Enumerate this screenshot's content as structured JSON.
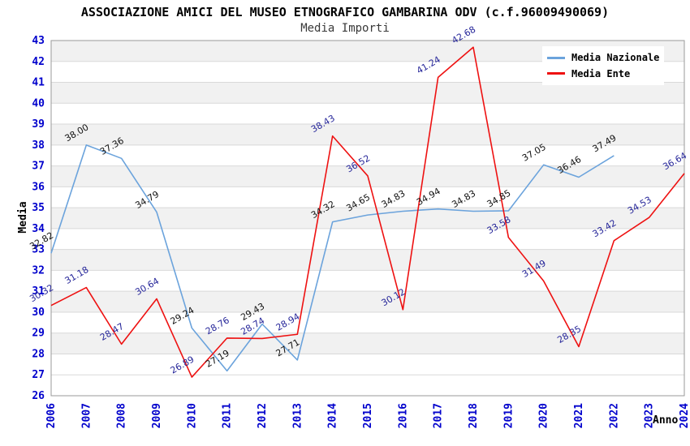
{
  "header": {
    "title": "ASSOCIAZIONE AMICI DEL MUSEO ETNOGRAFICO GAMBARINA ODV (c.f.96009490069)",
    "subtitle": "Media Importi"
  },
  "axes": {
    "y_label": "Media",
    "x_label": "Anno",
    "y_tick_color": "#0000cc",
    "x_tick_color": "#0000cc"
  },
  "legend": {
    "position": "top-right",
    "items": [
      {
        "label": "Media Nazionale",
        "color": "#6ba3dc"
      },
      {
        "label": "Media Ente",
        "color": "#ee1111"
      }
    ]
  },
  "colors": {
    "band_gray": "#f1f1f1",
    "gridline": "#d9d9d9",
    "frame": "#9a9a9a",
    "background": "#ffffff"
  },
  "chart_data": {
    "type": "line",
    "title": "ASSOCIAZIONE AMICI DEL MUSEO ETNOGRAFICO GAMBARINA ODV (c.f.96009490069)",
    "subtitle": "Media Importi",
    "xlabel": "Anno",
    "ylabel": "Media",
    "ylim": [
      26,
      43
    ],
    "y_ticks": [
      26,
      27,
      28,
      29,
      30,
      31,
      32,
      33,
      34,
      35,
      36,
      37,
      38,
      39,
      40,
      41,
      42,
      43
    ],
    "x": [
      2006,
      2007,
      2008,
      2009,
      2010,
      2011,
      2012,
      2013,
      2014,
      2015,
      2016,
      2017,
      2018,
      2019,
      2020,
      2021,
      2022,
      2023,
      2024
    ],
    "grid": "horizontal gridlines with alternating gray/white bands",
    "legend_position": "top-right inside plot",
    "series": [
      {
        "name": "Media Nazionale",
        "color": "#6ba3dc",
        "label_color": "#111111",
        "values": [
          32.82,
          38.0,
          37.36,
          34.79,
          29.24,
          27.19,
          29.43,
          27.71,
          34.32,
          34.65,
          34.83,
          34.94,
          34.83,
          34.85,
          37.05,
          36.46,
          37.49,
          null,
          null
        ]
      },
      {
        "name": "Media Ente",
        "color": "#ee1111",
        "label_color": "#252599",
        "values": [
          30.32,
          31.18,
          28.47,
          30.64,
          26.89,
          28.76,
          28.74,
          28.94,
          38.43,
          36.52,
          30.12,
          41.24,
          42.68,
          33.58,
          31.49,
          28.35,
          33.42,
          34.53,
          36.64
        ]
      }
    ]
  }
}
